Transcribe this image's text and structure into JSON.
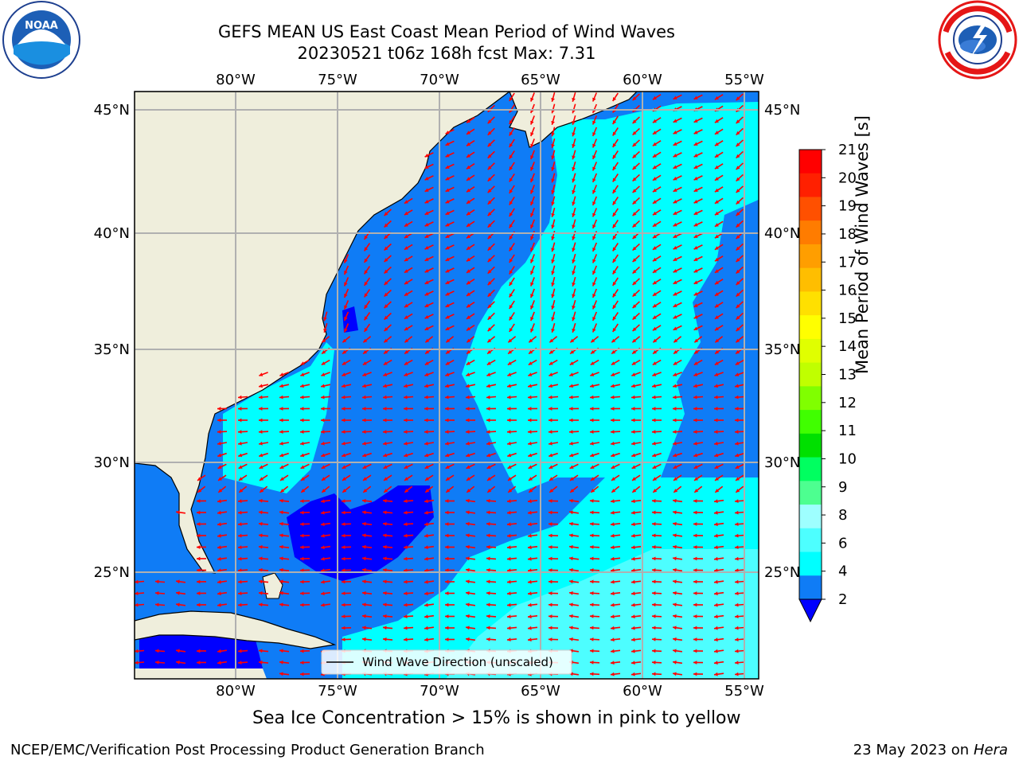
{
  "header": {
    "title_line1": "GEFS MEAN US East Coast Mean Period of Wind Waves",
    "title_line2": "20230521 t06z 168h fcst   Max: 7.31"
  },
  "logos": {
    "left": {
      "icon": "noaa-logo",
      "text": "NOAA",
      "ring_text": "NATIONAL OCEANIC AND ATMOSPHERIC ADMINISTRATION · U.S. DEPARTMENT OF COMMERCE"
    },
    "right": {
      "icon": "nws-logo",
      "ring_text": "NATIONAL WEATHER SERVICE"
    }
  },
  "map": {
    "lon_ticks": [
      "80°W",
      "75°W",
      "70°W",
      "65°W",
      "60°W",
      "55°W"
    ],
    "lat_ticks": [
      "45°N",
      "40°N",
      "35°N",
      "30°N",
      "25°N"
    ],
    "legend_label": "Wind Wave Direction (unscaled)",
    "colors": {
      "land": "#efeedc",
      "band_2_4": "#0f7cf6",
      "band_4_6": "#00ffff",
      "band_6_8": "#4dfeff",
      "below_2": "#0000ff",
      "arrow": "#ff0000"
    }
  },
  "colorbar": {
    "label": "Mean Period of Wind Waves [s]",
    "ticks": [
      "21",
      "20",
      "19",
      "18",
      "17",
      "16",
      "15",
      "14",
      "13",
      "12",
      "11",
      "10",
      "9",
      "8",
      "6",
      "4",
      "2"
    ],
    "band_colors": [
      "#ff0000",
      "#ff2000",
      "#ff5000",
      "#ff7c00",
      "#ff9e00",
      "#ffbe00",
      "#ffe000",
      "#ffff00",
      "#e0ff00",
      "#c0ff00",
      "#80ff00",
      "#40ff00",
      "#00e000",
      "#00ff60",
      "#4dff90",
      "#9effff",
      "#4dffff",
      "#00ffff",
      "#0f7cf6"
    ],
    "extend_color": "#0000ff"
  },
  "caption": "Sea Ice Concentration > 15% is shown in pink to yellow",
  "footer": {
    "left": "NCEP/EMC/Verification Post Processing Product Generation Branch",
    "date": "23 May 2023 on",
    "machine": "Hera"
  }
}
